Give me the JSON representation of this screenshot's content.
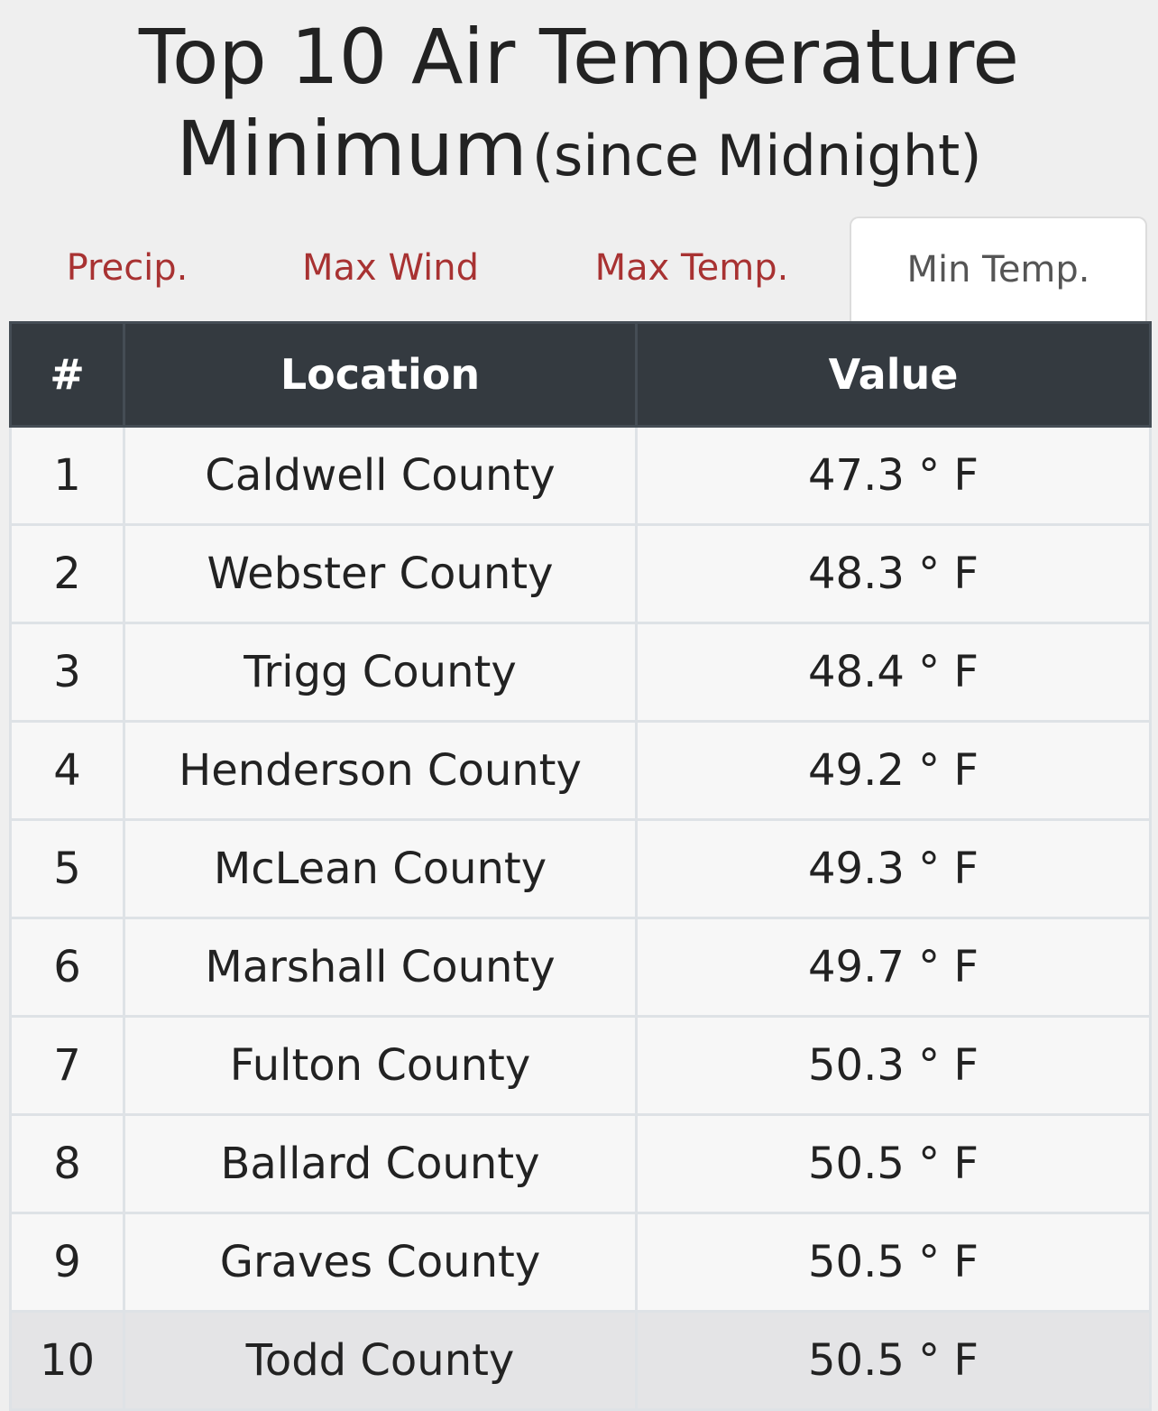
{
  "title": {
    "line1": "Top 10 Air Temperature",
    "line2_main": "Minimum",
    "line2_sub": "(since Midnight)"
  },
  "tabs": [
    {
      "label": "Precip.",
      "active": false
    },
    {
      "label": "Max Wind",
      "active": false
    },
    {
      "label": "Max Temp.",
      "active": false
    },
    {
      "label": "Min Temp.",
      "active": true
    }
  ],
  "table": {
    "headers": {
      "rank": "#",
      "location": "Location",
      "value": "Value"
    },
    "rows": [
      {
        "rank": "1",
        "location": "Caldwell County",
        "value": "47.3 ° F"
      },
      {
        "rank": "2",
        "location": "Webster County",
        "value": "48.3 ° F"
      },
      {
        "rank": "3",
        "location": "Trigg County",
        "value": "48.4 ° F"
      },
      {
        "rank": "4",
        "location": "Henderson County",
        "value": "49.2 ° F"
      },
      {
        "rank": "5",
        "location": "McLean County",
        "value": "49.3 ° F"
      },
      {
        "rank": "6",
        "location": "Marshall County",
        "value": "49.7 ° F"
      },
      {
        "rank": "7",
        "location": "Fulton County",
        "value": "50.3 ° F"
      },
      {
        "rank": "8",
        "location": "Ballard County",
        "value": "50.5 ° F"
      },
      {
        "rank": "9",
        "location": "Graves County",
        "value": "50.5 ° F"
      },
      {
        "rank": "10",
        "location": "Todd County",
        "value": "50.5 ° F"
      }
    ]
  },
  "colors": {
    "tab_link": "#a83232",
    "header_bg": "#343a40",
    "page_bg": "#efefef"
  }
}
